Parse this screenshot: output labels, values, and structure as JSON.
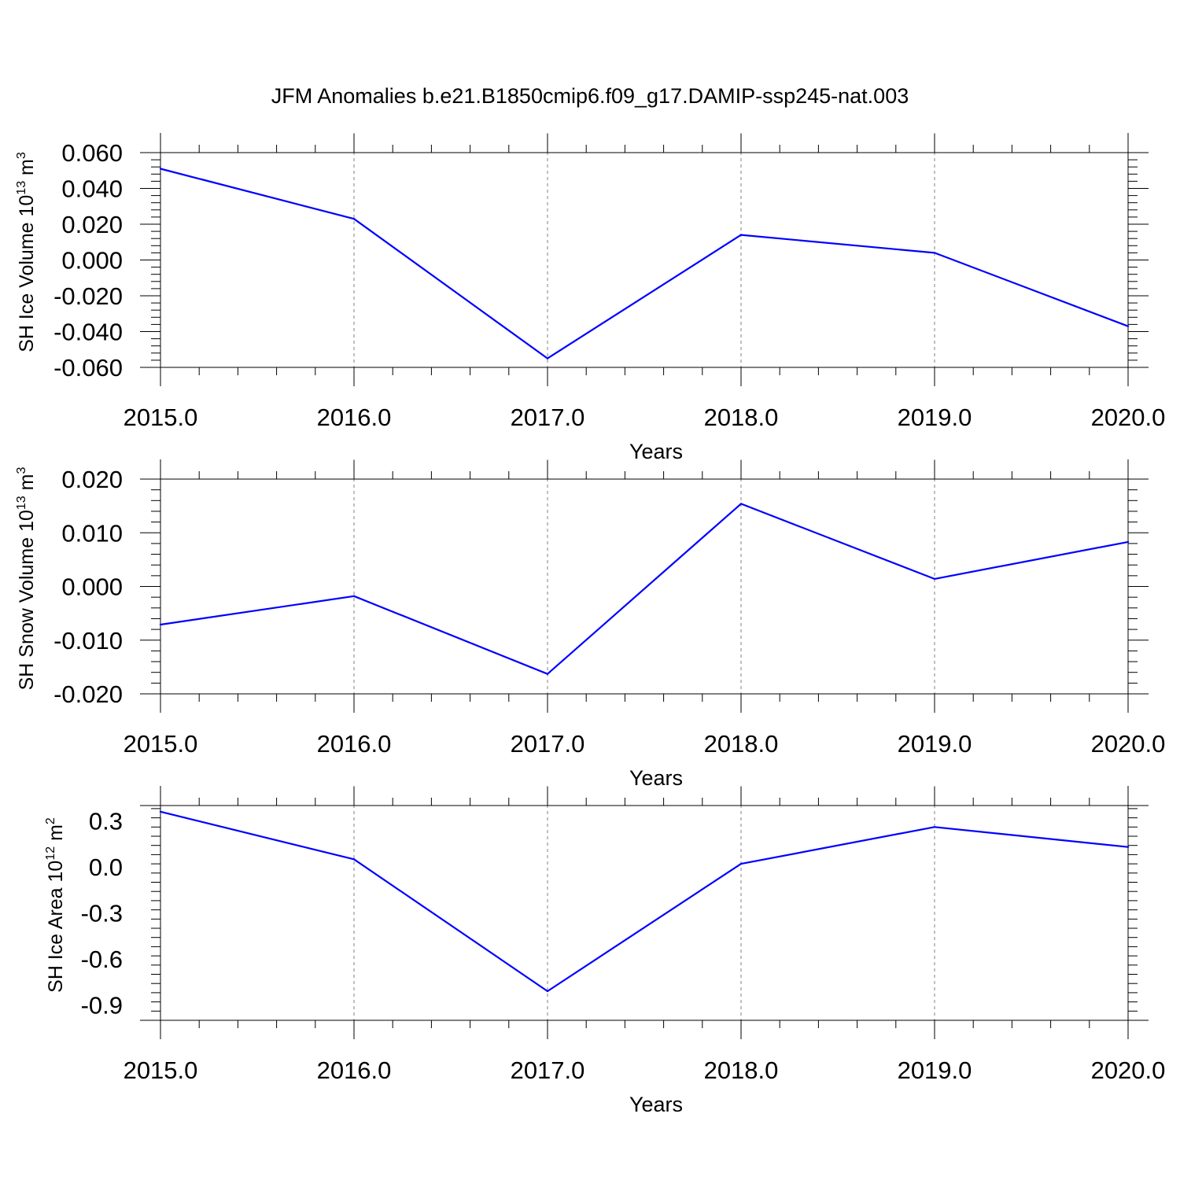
{
  "title": "JFM Anomalies b.e21.B1850cmip6.f09_g17.DAMIP-ssp245-nat.003",
  "colors": {
    "series": "#0000ff",
    "axis": "#000000",
    "grid": "#808080"
  },
  "chart_data": [
    {
      "type": "line",
      "xlabel": "Years",
      "ylabel": {
        "main": "SH Ice Volume 10",
        "sup": "13",
        "unit": " m",
        "unit_sup": "3"
      },
      "x": [
        2015,
        2016,
        2017,
        2018,
        2019,
        2020
      ],
      "values": [
        0.051,
        0.023,
        -0.055,
        0.014,
        0.004,
        -0.037
      ],
      "xlim": [
        2015,
        2020
      ],
      "ylim": [
        -0.06,
        0.06
      ],
      "xticks": [
        "2015.0",
        "2016.0",
        "2017.0",
        "2018.0",
        "2019.0",
        "2020.0"
      ],
      "yticks": [
        {
          "v": 0.06,
          "label": "0.060"
        },
        {
          "v": 0.04,
          "label": "0.040"
        },
        {
          "v": 0.02,
          "label": "0.020"
        },
        {
          "v": 0.0,
          "label": "0.000"
        },
        {
          "v": -0.02,
          "label": "-0.020"
        },
        {
          "v": -0.04,
          "label": "-0.040"
        },
        {
          "v": -0.06,
          "label": "-0.060"
        }
      ],
      "grid": "vertical dashed at each year"
    },
    {
      "type": "line",
      "xlabel": "Years",
      "ylabel": {
        "main": "SH Snow Volume 10",
        "sup": "13",
        "unit": " m",
        "unit_sup": "3"
      },
      "x": [
        2015,
        2016,
        2017,
        2018,
        2019,
        2020
      ],
      "values": [
        -0.0071,
        -0.0018,
        -0.0163,
        0.0154,
        0.0014,
        0.0083
      ],
      "xlim": [
        2015,
        2020
      ],
      "ylim": [
        -0.02,
        0.02
      ],
      "xticks": [
        "2015.0",
        "2016.0",
        "2017.0",
        "2018.0",
        "2019.0",
        "2020.0"
      ],
      "yticks": [
        {
          "v": 0.02,
          "label": "0.020"
        },
        {
          "v": 0.01,
          "label": "0.010"
        },
        {
          "v": 0.0,
          "label": "0.000"
        },
        {
          "v": -0.01,
          "label": "-0.010"
        },
        {
          "v": -0.02,
          "label": "-0.020"
        }
      ],
      "grid": "vertical dashed at each year"
    },
    {
      "type": "line",
      "xlabel": "Years",
      "ylabel": {
        "main": "SH Ice Area 10",
        "sup": "12",
        "unit": " m",
        "unit_sup": "2"
      },
      "x": [
        2015,
        2016,
        2017,
        2018,
        2019,
        2020
      ],
      "values": [
        0.36,
        0.05,
        -0.81,
        0.02,
        0.26,
        0.13
      ],
      "xlim": [
        2015,
        2020
      ],
      "ylim": [
        -1.0,
        0.4
      ],
      "xticks": [
        "2015.0",
        "2016.0",
        "2017.0",
        "2018.0",
        "2019.0",
        "2020.0"
      ],
      "yticks": [
        {
          "v": 0.3,
          "label": "0.3"
        },
        {
          "v": 0.0,
          "label": "0.0"
        },
        {
          "v": -0.3,
          "label": "-0.3"
        },
        {
          "v": -0.6,
          "label": "-0.6"
        },
        {
          "v": -0.9,
          "label": "-0.9"
        }
      ],
      "grid": "vertical dashed at each year"
    }
  ]
}
